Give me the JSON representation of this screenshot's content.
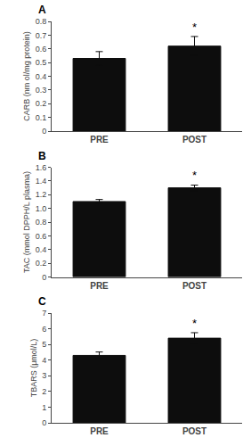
{
  "chart_data": [
    {
      "type": "bar",
      "title": "A",
      "ylabel": "CARB (nm ol/mg protein)",
      "categories": [
        "PRE",
        "POST"
      ],
      "values": [
        0.53,
        0.62
      ],
      "errors": [
        0.05,
        0.07
      ],
      "color": "#0d0d0d",
      "ylim": [
        0,
        0.8
      ],
      "yticks": [
        0,
        0.1,
        0.2,
        0.3,
        0.4,
        0.5,
        0.6,
        0.7,
        0.8
      ],
      "annotations": [
        {
          "text": "*",
          "x": "POST"
        }
      ],
      "grid": false
    },
    {
      "type": "bar",
      "title": "B",
      "ylabel": "TAC (mmol DPPH/L plasma)",
      "categories": [
        "PRE",
        "POST"
      ],
      "values": [
        1.1,
        1.3
      ],
      "errors": [
        0.03,
        0.04
      ],
      "color": "#0d0d0d",
      "ylim": [
        0,
        1.6
      ],
      "yticks": [
        0,
        0.2,
        0.4,
        0.6,
        0.8,
        {
          "value": 1.0,
          "label": "1.0"
        },
        1.2,
        1.4,
        1.6
      ],
      "annotations": [
        {
          "text": "*",
          "x": "POST"
        }
      ],
      "grid": false
    },
    {
      "type": "bar",
      "title": "C",
      "ylabel": "TBARS (μmol/L)",
      "categories": [
        "PRE",
        "POST"
      ],
      "values": [
        4.3,
        5.4
      ],
      "errors": [
        0.22,
        0.35
      ],
      "color": "#0d0d0d",
      "ylim": [
        0,
        7
      ],
      "yticks": [
        0,
        1,
        2,
        3,
        4,
        5,
        6,
        7
      ],
      "annotations": [
        {
          "text": "*",
          "x": "POST"
        }
      ],
      "grid": false
    }
  ]
}
